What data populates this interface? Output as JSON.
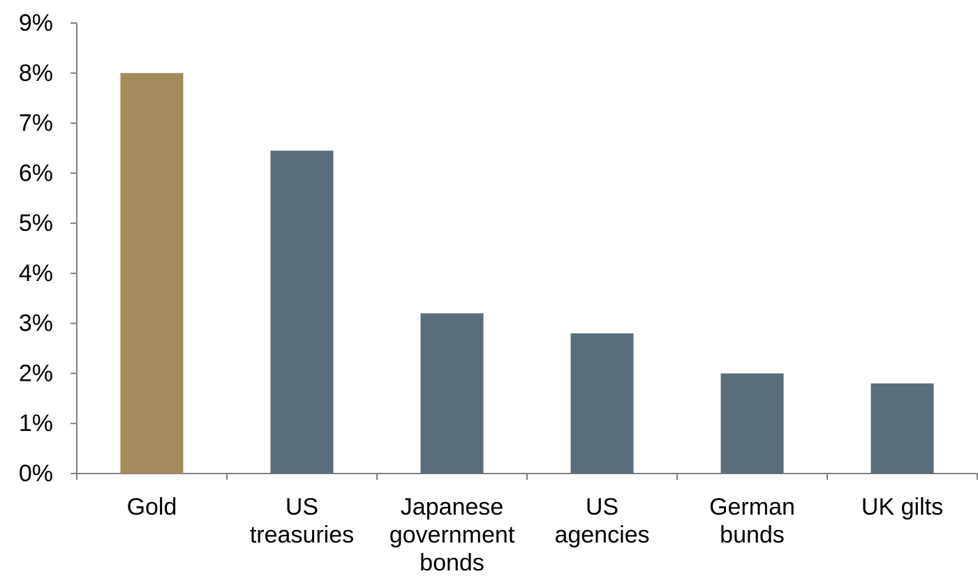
{
  "chart_data": {
    "type": "bar",
    "title": "",
    "xlabel": "",
    "ylabel": "",
    "categories": [
      [
        "Gold"
      ],
      [
        "US",
        "treasuries"
      ],
      [
        "Japanese",
        "government",
        "bonds"
      ],
      [
        "US",
        "agencies"
      ],
      [
        "German",
        "bunds"
      ],
      [
        "UK gilts"
      ]
    ],
    "values": [
      8.0,
      6.45,
      3.2,
      2.8,
      2.0,
      1.8
    ],
    "ylim": [
      0,
      9
    ],
    "yticks": [
      "0%",
      "1%",
      "2%",
      "3%",
      "4%",
      "5%",
      "6%",
      "7%",
      "8%",
      "9%"
    ],
    "grid": false,
    "legend": "none",
    "colors": {
      "highlight": "#a48b5c",
      "default": "#5a6d7a",
      "axis": "#7f7f7f"
    },
    "highlight_index": 0
  }
}
